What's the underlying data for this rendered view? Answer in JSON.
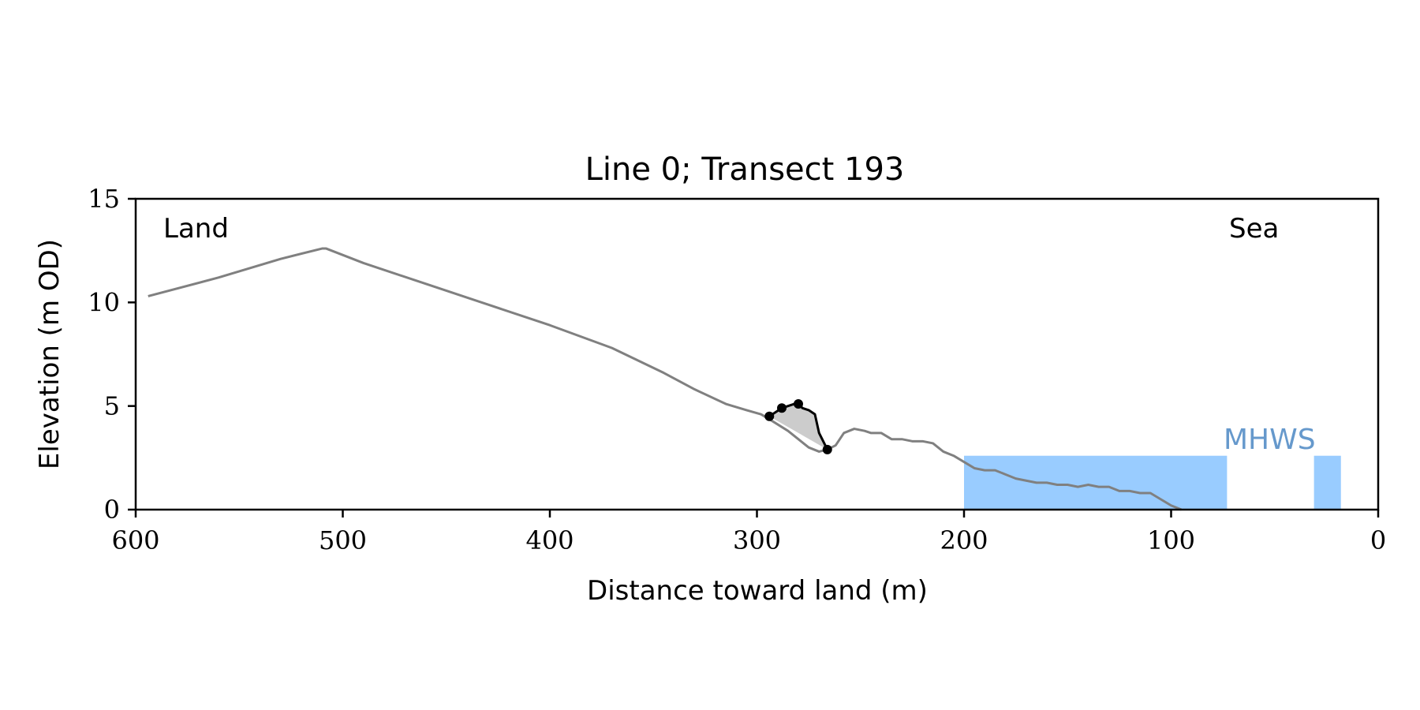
{
  "chart_data": {
    "type": "line",
    "title": "Line 0; Transect 193",
    "xlabel": "Distance toward land (m)",
    "ylabel": "Elevation (m OD)",
    "xlim": [
      600,
      0
    ],
    "ylim": [
      0,
      15
    ],
    "x_ticks": [
      "600",
      "500",
      "400",
      "300",
      "200",
      "100",
      "0"
    ],
    "y_ticks": [
      "0",
      "5",
      "10",
      "15"
    ],
    "grid": false,
    "annotations": {
      "land": "Land",
      "sea": "Sea",
      "water_level": "MHWS"
    },
    "colors": {
      "profile": "#808080",
      "feature": "#000000",
      "feature_fill": "#cccccc",
      "water": "#99ccff",
      "water_label": "#6699cc"
    },
    "profile": {
      "x": [
        594,
        560,
        530,
        510,
        508,
        490,
        460,
        430,
        400,
        370,
        345,
        330,
        315,
        305,
        298,
        293,
        285,
        280,
        275,
        270,
        266,
        262,
        258,
        253,
        248,
        245,
        240,
        235,
        230,
        225,
        220,
        215,
        210,
        205,
        200,
        195,
        190,
        185,
        180,
        175,
        170,
        165,
        160,
        155,
        150,
        145,
        140,
        135,
        130,
        125,
        120,
        115,
        110,
        105,
        100,
        95
      ],
      "y": [
        10.3,
        11.2,
        12.1,
        12.6,
        12.6,
        11.9,
        10.9,
        9.9,
        8.9,
        7.8,
        6.6,
        5.8,
        5.1,
        4.8,
        4.6,
        4.3,
        3.8,
        3.4,
        3.0,
        2.8,
        2.9,
        3.1,
        3.7,
        3.9,
        3.8,
        3.7,
        3.7,
        3.4,
        3.4,
        3.3,
        3.3,
        3.2,
        2.8,
        2.6,
        2.3,
        2.0,
        1.9,
        1.9,
        1.7,
        1.5,
        1.4,
        1.3,
        1.3,
        1.2,
        1.2,
        1.1,
        1.2,
        1.1,
        1.1,
        0.9,
        0.9,
        0.8,
        0.8,
        0.5,
        0.2,
        0.0
      ]
    },
    "feature": {
      "x": [
        294,
        291,
        288,
        285,
        282,
        280,
        278,
        275,
        272,
        270,
        266
      ],
      "y": [
        4.5,
        4.7,
        4.9,
        5.0,
        5.1,
        5.1,
        4.9,
        4.8,
        4.6,
        3.7,
        2.9
      ]
    },
    "feature_points": {
      "x": [
        294,
        288,
        280,
        266
      ],
      "y": [
        4.5,
        4.9,
        5.1,
        2.9
      ]
    },
    "water_level": 2.6,
    "water_regions": [
      {
        "x_start": 200,
        "x_end": 73
      },
      {
        "x_start": 31,
        "x_end": 18
      }
    ]
  }
}
